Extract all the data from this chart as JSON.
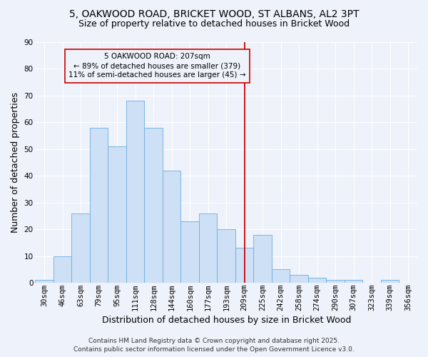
{
  "title": "5, OAKWOOD ROAD, BRICKET WOOD, ST ALBANS, AL2 3PT",
  "subtitle": "Size of property relative to detached houses in Bricket Wood",
  "xlabel": "Distribution of detached houses by size in Bricket Wood",
  "ylabel": "Number of detached properties",
  "bin_labels": [
    "30sqm",
    "46sqm",
    "63sqm",
    "79sqm",
    "95sqm",
    "111sqm",
    "128sqm",
    "144sqm",
    "160sqm",
    "177sqm",
    "193sqm",
    "209sqm",
    "225sqm",
    "242sqm",
    "258sqm",
    "274sqm",
    "290sqm",
    "307sqm",
    "323sqm",
    "339sqm",
    "356sqm"
  ],
  "bar_heights": [
    1,
    10,
    26,
    58,
    51,
    68,
    58,
    42,
    23,
    26,
    20,
    13,
    18,
    5,
    3,
    2,
    1,
    1,
    0,
    1,
    0
  ],
  "bar_color": "#cde0f5",
  "bar_edgecolor": "#6aaee0",
  "ylim": [
    0,
    90
  ],
  "yticks": [
    0,
    10,
    20,
    30,
    40,
    50,
    60,
    70,
    80,
    90
  ],
  "vline_color": "#cc0000",
  "annotation_line1": "5 OAKWOOD ROAD: 207sqm",
  "annotation_line2": "← 89% of detached houses are smaller (379)",
  "annotation_line3": "11% of semi-detached houses are larger (45) →",
  "annotation_box_edgecolor": "#cc0000",
  "footer_line1": "Contains HM Land Registry data © Crown copyright and database right 2025.",
  "footer_line2": "Contains public sector information licensed under the Open Government Licence v3.0.",
  "background_color": "#eef2fa",
  "grid_color": "#ffffff",
  "title_fontsize": 10,
  "subtitle_fontsize": 9,
  "axis_label_fontsize": 9,
  "tick_fontsize": 7.5,
  "annotation_fontsize": 7.5,
  "footer_fontsize": 6.5
}
